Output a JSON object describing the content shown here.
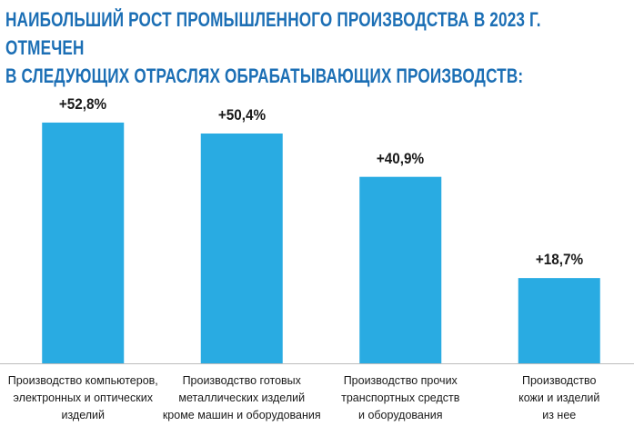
{
  "chart_data": {
    "type": "bar",
    "title": "НАИБОЛЬШИЙ РОСТ ПРОМЫШЛЕННОГО ПРОИЗВОДСТВА В 2023 Г. ОТМЕЧЕН\nВ СЛЕДУЮЩИХ ОТРАСЛЯХ ОБРАБАТЫВАЮЩИХ ПРОИЗВОДСТВ:",
    "categories": [
      "Производство компьютеров,\nэлектронных и оптических\nизделий",
      "Производство готовых\nметаллических изделий\nкроме машин и оборудования",
      "Производство прочих\nтранспортных средств\nи оборудования",
      "Производство\nкожи и изделий\nиз нее"
    ],
    "values": [
      52.8,
      50.4,
      40.9,
      18.7
    ],
    "value_labels": [
      "+52,8%",
      "+50,4%",
      "+40,9%",
      "+18,7%"
    ],
    "color": "#29abe2"
  }
}
